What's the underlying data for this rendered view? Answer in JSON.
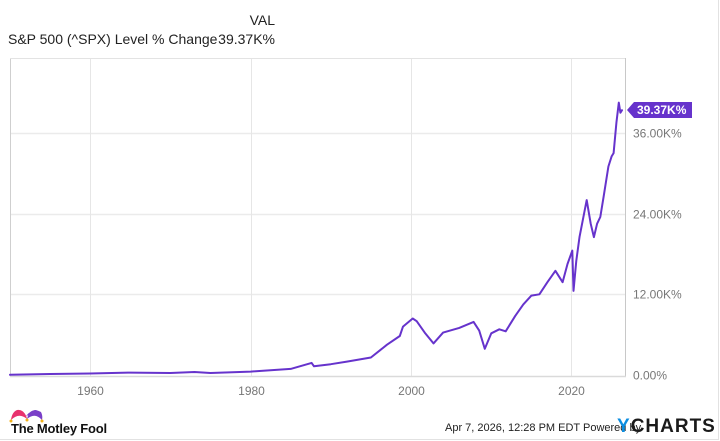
{
  "legend": {
    "column_header": "VAL",
    "series_name": "S&P 500 (^SPX) Level % Change",
    "series_value": "39.37K%"
  },
  "footer": {
    "timestamp": "Apr 7, 2026, 12:28 PM EDT",
    "powered_by": "Powered by",
    "brand_y": "Y",
    "brand_rest": "CHARTS",
    "logo_text": "The Motley Fool"
  },
  "colors": {
    "line": "#6633cc",
    "grid": "#e6e6e6",
    "axis": "#cccccc",
    "label_bg": "#6633cc"
  },
  "chart_data": {
    "type": "line",
    "title": "S&P 500 (^SPX) Level % Change",
    "xlabel": "",
    "ylabel": "",
    "x_ticks": [
      "1960",
      "1980",
      "2000",
      "2020"
    ],
    "y_ticks": [
      "0.00%",
      "12.00K%",
      "24.00K%",
      "36.00K%"
    ],
    "y_tick_values": [
      0,
      12,
      24,
      36
    ],
    "ylim": [
      0,
      42.5
    ],
    "xlim": [
      1950,
      2026.3
    ],
    "grid": true,
    "legend_position": "top-left",
    "last_value_label": "39.37K%",
    "series": [
      {
        "name": "S&P 500 (^SPX) Level % Change",
        "units": "thousand percent",
        "x": [
          1950,
          1955,
          1960,
          1965,
          1970,
          1973,
          1975,
          1980,
          1985,
          1987.6,
          1987.9,
          1990,
          1992,
          1995,
          1997,
          1998.6,
          1999,
          2000.2,
          2000.7,
          2001.7,
          2002.8,
          2004,
          2006,
          2007.8,
          2008.5,
          2009.2,
          2010,
          2011,
          2011.8,
          2013,
          2014,
          2015,
          2016,
          2017,
          2018,
          2018.9,
          2019.5,
          2020.1,
          2020.25,
          2020.6,
          2021,
          2021.9,
          2022.4,
          2022.8,
          2023.2,
          2023.6,
          2024,
          2024.6,
          2025.0,
          2025.25,
          2025.6,
          2025.9,
          2026.1,
          2026.3
        ],
        "values": [
          0.03,
          0.15,
          0.22,
          0.35,
          0.3,
          0.45,
          0.3,
          0.5,
          0.9,
          1.8,
          1.3,
          1.6,
          2.0,
          2.6,
          4.5,
          5.8,
          7.2,
          8.4,
          8.0,
          6.3,
          4.7,
          6.3,
          7.0,
          7.9,
          6.6,
          3.9,
          6.2,
          6.8,
          6.5,
          8.8,
          10.5,
          11.8,
          12.0,
          13.8,
          15.5,
          13.8,
          16.5,
          18.5,
          12.5,
          17.0,
          20.5,
          26.0,
          22.5,
          20.5,
          22.5,
          23.5,
          26.5,
          31.0,
          32.5,
          33.0,
          37.5,
          40.5,
          39.0,
          39.37
        ]
      }
    ]
  }
}
